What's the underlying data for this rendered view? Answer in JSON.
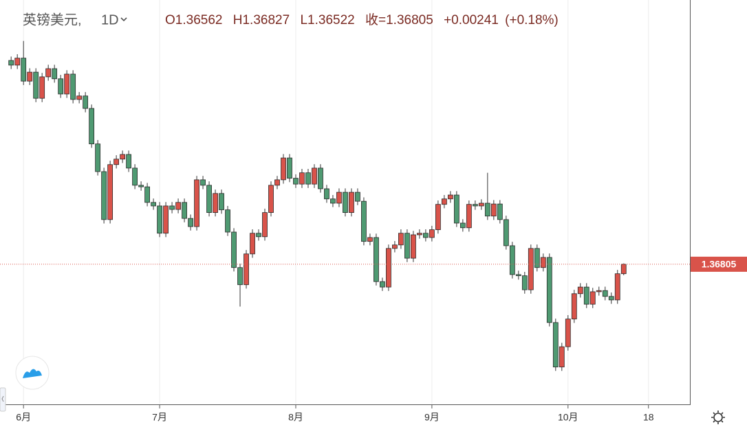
{
  "chart_data": {
    "type": "candlestick",
    "symbol": "英镑美元,",
    "interval": "1D",
    "open_label": "O",
    "high_label": "H",
    "low_label": "L",
    "close_label": "收=",
    "change": "+0.00241",
    "change_pct": "(+0.18%)",
    "up_color": "#d9534a",
    "down_color": "#4f9a72",
    "xlim": [
      -1.8,
      109.7
    ],
    "ylim": [
      1.3323,
      1.4358
    ],
    "xticks": [
      {
        "value": 2,
        "label": "6月"
      },
      {
        "value": 24,
        "label": "7月"
      },
      {
        "value": 46,
        "label": "8月"
      },
      {
        "value": 68,
        "label": "9月"
      },
      {
        "value": 90,
        "label": "10月"
      },
      {
        "value": 103,
        "label": "18"
      }
    ],
    "grid": true,
    "open": [
      1.4203,
      1.4191,
      1.4209,
      1.415,
      1.4173,
      1.4106,
      1.4161,
      1.4182,
      1.4156,
      1.4117,
      1.4168,
      1.4103,
      1.4112,
      1.408,
      1.3989,
      1.3918,
      1.3795,
      1.3936,
      1.395,
      1.3962,
      1.3927,
      1.3883,
      1.3879,
      1.3839,
      1.383,
      1.376,
      1.383,
      1.3821,
      1.3839,
      1.3798,
      1.3777,
      1.3897,
      1.3883,
      1.3813,
      1.3862,
      1.382,
      1.3763,
      1.3672,
      1.3628,
      1.3707,
      1.376,
      1.3751,
      1.3813,
      1.3883,
      1.3897,
      1.3953,
      1.3901,
      1.3886,
      1.3915,
      1.3886,
      1.3927,
      1.3874,
      1.3848,
      1.3837,
      1.3865,
      1.3813,
      1.3865,
      1.3842,
      1.3739,
      1.3749,
      1.3636,
      1.3622,
      1.3721,
      1.373,
      1.376,
      1.3696,
      1.3756,
      1.376,
      1.3749,
      1.3769,
      1.3834,
      1.3848,
      1.3858,
      1.3786,
      1.3774,
      1.3834,
      1.383,
      1.3837,
      1.3804,
      1.3835,
      1.3795,
      1.3728,
      1.3654,
      1.3651,
      1.3615,
      1.3721,
      1.3672,
      1.3698,
      1.3531,
      1.3417,
      1.3469,
      1.354,
      1.3605,
      1.3622,
      1.3578,
      1.361,
      1.3613,
      1.3598,
      1.3589,
      1.36562
    ],
    "high": [
      1.4213,
      1.4219,
      1.4253,
      1.4183,
      1.4183,
      1.4171,
      1.4192,
      1.4192,
      1.4166,
      1.4178,
      1.4178,
      1.4122,
      1.4122,
      1.409,
      1.3999,
      1.3928,
      1.3946,
      1.396,
      1.3972,
      1.3972,
      1.3937,
      1.3893,
      1.3889,
      1.3849,
      1.384,
      1.384,
      1.384,
      1.3849,
      1.3849,
      1.3808,
      1.3907,
      1.3907,
      1.3893,
      1.3872,
      1.3872,
      1.383,
      1.3773,
      1.3682,
      1.3717,
      1.377,
      1.377,
      1.3823,
      1.3893,
      1.3907,
      1.3963,
      1.3963,
      1.3911,
      1.3925,
      1.3925,
      1.3937,
      1.3937,
      1.3884,
      1.3858,
      1.3875,
      1.3875,
      1.3875,
      1.3875,
      1.3852,
      1.3759,
      1.3759,
      1.3646,
      1.3731,
      1.374,
      1.377,
      1.377,
      1.3766,
      1.377,
      1.377,
      1.3779,
      1.3844,
      1.3858,
      1.3868,
      1.3868,
      1.3796,
      1.3844,
      1.3844,
      1.3847,
      1.3915,
      1.3845,
      1.3845,
      1.3805,
      1.3738,
      1.3664,
      1.3661,
      1.3731,
      1.3731,
      1.3708,
      1.3708,
      1.3541,
      1.3479,
      1.355,
      1.3615,
      1.3632,
      1.3632,
      1.362,
      1.3623,
      1.3623,
      1.3608,
      1.3666,
      1.36827
    ],
    "low": [
      1.4181,
      1.4181,
      1.414,
      1.414,
      1.4096,
      1.4096,
      1.4151,
      1.4146,
      1.4107,
      1.4107,
      1.4093,
      1.4093,
      1.407,
      1.3979,
      1.3908,
      1.3785,
      1.3785,
      1.3926,
      1.394,
      1.3917,
      1.3873,
      1.3869,
      1.3829,
      1.382,
      1.375,
      1.375,
      1.3811,
      1.3811,
      1.3788,
      1.3767,
      1.3767,
      1.3873,
      1.3803,
      1.3803,
      1.381,
      1.3753,
      1.3662,
      1.3572,
      1.3618,
      1.3697,
      1.3741,
      1.3741,
      1.3803,
      1.3873,
      1.3887,
      1.3891,
      1.3876,
      1.3876,
      1.3876,
      1.3876,
      1.3864,
      1.3838,
      1.3827,
      1.3827,
      1.3803,
      1.3803,
      1.3832,
      1.3729,
      1.3729,
      1.3626,
      1.3612,
      1.3612,
      1.3711,
      1.372,
      1.3686,
      1.3686,
      1.3746,
      1.3739,
      1.3739,
      1.3759,
      1.3824,
      1.3838,
      1.3776,
      1.3764,
      1.3764,
      1.382,
      1.382,
      1.3794,
      1.3794,
      1.3785,
      1.3718,
      1.3644,
      1.3641,
      1.3605,
      1.3605,
      1.3662,
      1.3662,
      1.3521,
      1.3407,
      1.3407,
      1.3459,
      1.353,
      1.3595,
      1.3568,
      1.3568,
      1.36,
      1.3588,
      1.3579,
      1.3579,
      1.36522
    ],
    "close": [
      1.4191,
      1.4209,
      1.415,
      1.4173,
      1.4106,
      1.4161,
      1.4182,
      1.4156,
      1.4117,
      1.4168,
      1.4103,
      1.4112,
      1.408,
      1.3989,
      1.3918,
      1.3795,
      1.3936,
      1.395,
      1.3962,
      1.3927,
      1.3883,
      1.3879,
      1.3839,
      1.383,
      1.376,
      1.383,
      1.3821,
      1.3839,
      1.3798,
      1.3777,
      1.3897,
      1.3883,
      1.3813,
      1.3862,
      1.382,
      1.3763,
      1.3672,
      1.3628,
      1.3707,
      1.376,
      1.3751,
      1.3813,
      1.3883,
      1.3897,
      1.3953,
      1.3901,
      1.3886,
      1.3915,
      1.3886,
      1.3927,
      1.3874,
      1.3848,
      1.3837,
      1.3865,
      1.3813,
      1.3865,
      1.3842,
      1.3739,
      1.3749,
      1.3636,
      1.3622,
      1.3721,
      1.373,
      1.376,
      1.3696,
      1.3756,
      1.376,
      1.3749,
      1.3769,
      1.3834,
      1.3848,
      1.3858,
      1.3786,
      1.3774,
      1.3834,
      1.383,
      1.3837,
      1.3804,
      1.3835,
      1.3795,
      1.3728,
      1.3654,
      1.3651,
      1.3615,
      1.3721,
      1.3672,
      1.3698,
      1.3531,
      1.3417,
      1.3469,
      1.354,
      1.3605,
      1.3622,
      1.3578,
      1.361,
      1.3613,
      1.3598,
      1.3589,
      1.36562,
      1.36805
    ]
  }
}
